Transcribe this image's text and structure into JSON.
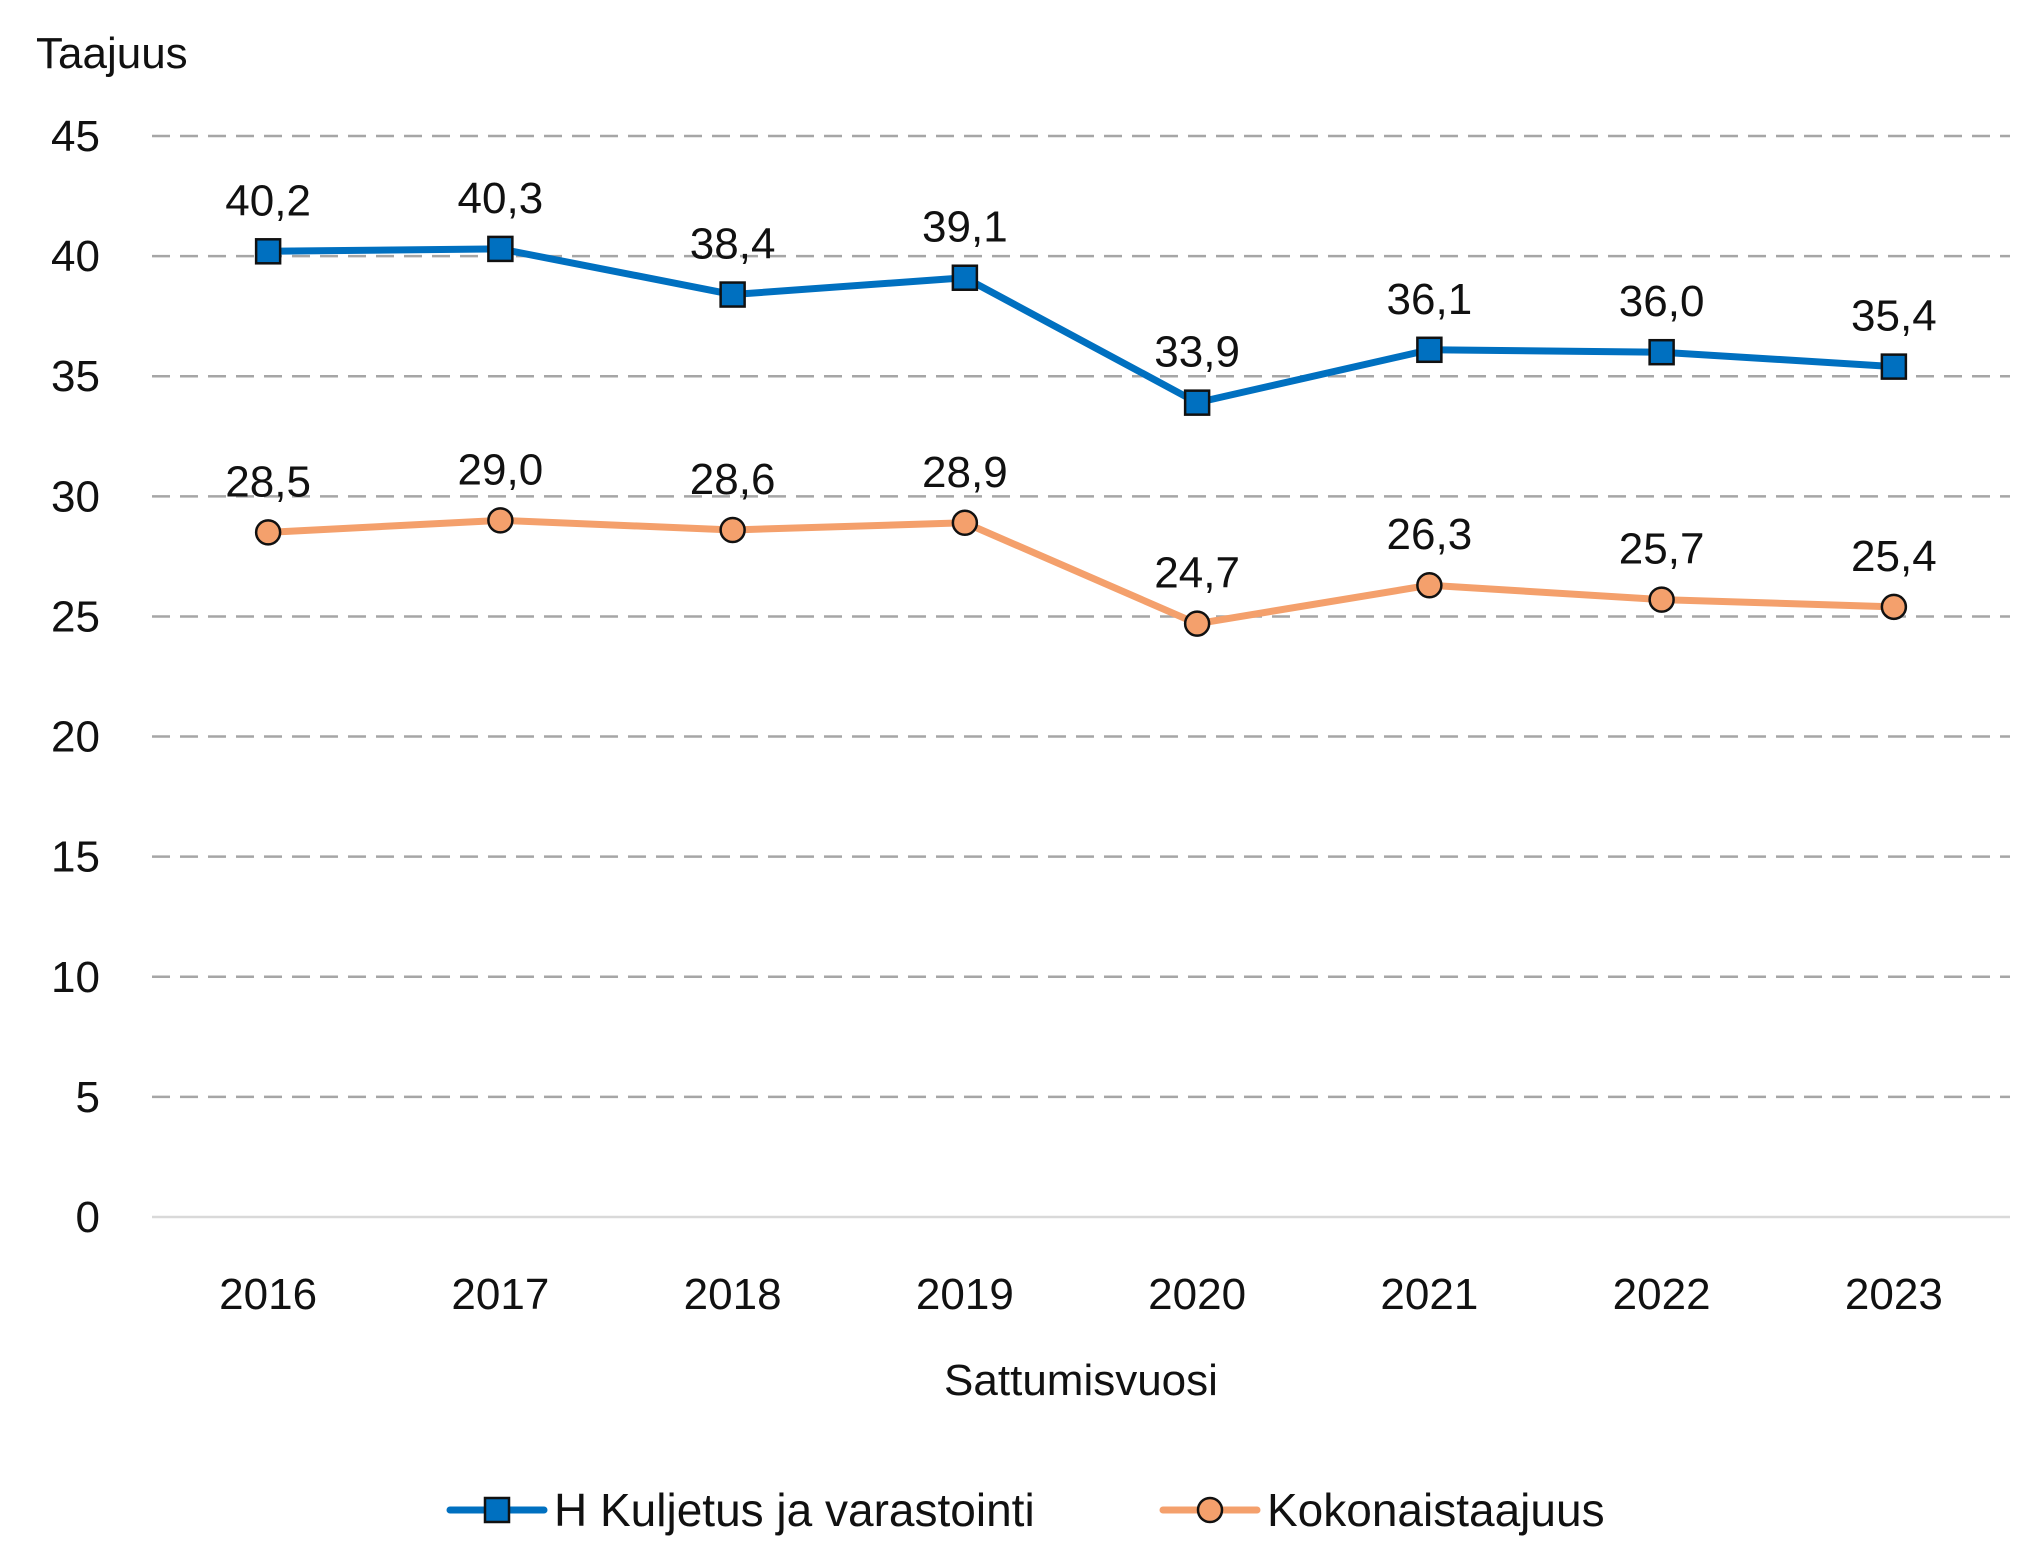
{
  "chart_data": {
    "type": "line",
    "title": "",
    "ylabel": "Taajuus",
    "xlabel": "Sattumisvuosi",
    "categories": [
      "2016",
      "2017",
      "2018",
      "2019",
      "2020",
      "2021",
      "2022",
      "2023"
    ],
    "ylim": [
      0,
      45
    ],
    "yticks": [
      0,
      5,
      10,
      15,
      20,
      25,
      30,
      35,
      40,
      45
    ],
    "grid": true,
    "legend_position": "bottom",
    "series": [
      {
        "name": "H Kuljetus ja varastointi",
        "marker": "square",
        "color": "#0070C0",
        "values": [
          40.2,
          40.3,
          38.4,
          39.1,
          33.9,
          36.1,
          36.0,
          35.4
        ],
        "labels": [
          "40,2",
          "40,3",
          "38,4",
          "39,1",
          "33,9",
          "36,1",
          "36,0",
          "35,4"
        ]
      },
      {
        "name": "Kokonaistaajuus",
        "marker": "circle",
        "color": "#F4A06C",
        "values": [
          28.5,
          29.0,
          28.6,
          28.9,
          24.7,
          26.3,
          25.7,
          25.4
        ],
        "labels": [
          "28,5",
          "29,0",
          "28,6",
          "28,9",
          "24,7",
          "26,3",
          "25,7",
          "25,4"
        ]
      }
    ]
  }
}
